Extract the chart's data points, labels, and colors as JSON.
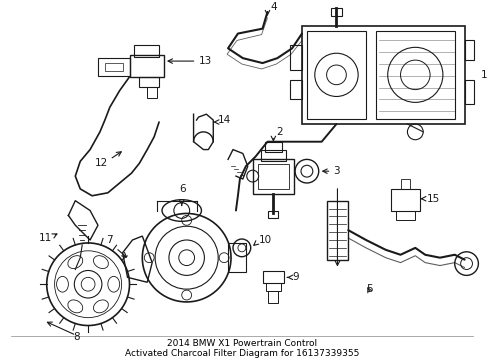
{
  "title_line1": "2014 BMW X1 Powertrain Control",
  "title_line2": "Activated Charcoal Filter Diagram for 16137339355",
  "bg_color": "#ffffff",
  "line_color": "#1a1a1a",
  "fig_width": 4.89,
  "fig_height": 3.6,
  "dpi": 100,
  "border_color": "#cccccc",
  "font_size": 7.5
}
